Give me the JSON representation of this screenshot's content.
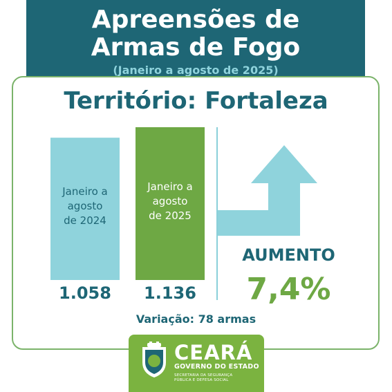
{
  "header": {
    "title_line1": "Apreensões de",
    "title_line2": "Armas de Fogo",
    "subtitle": "(Janeiro a agosto de 2025)"
  },
  "territory": "Território: Fortaleza",
  "change": {
    "label": "AUMENTO",
    "percent": "7,4%",
    "variation": "Variação: 78 armas"
  },
  "footer": {
    "brand": "CEARÁ",
    "brand_sub": "GOVERNO DO ESTADO",
    "secretariat_line1": "SECRETARIA DA SEGURANÇA",
    "secretariat_line2": "PÚBLICA E DEFESA SOCIAL"
  },
  "colors": {
    "teal_dark": "#1e6675",
    "teal_light": "#8fd3dc",
    "green": "#6ea844",
    "panel_border": "#7bb36a"
  },
  "icons": [
    "arrow-up-right-icon",
    "ceara-crest-icon"
  ],
  "chart_data": {
    "type": "bar",
    "categories": [
      [
        "Janeiro a",
        "agosto",
        "de 2024"
      ],
      [
        "Janeiro a",
        "agosto",
        "de 2025"
      ]
    ],
    "values": [
      1058,
      1136
    ],
    "value_labels": [
      "1.058",
      "1.136"
    ],
    "bar_colors": [
      "#8fd3dc",
      "#6ea844"
    ],
    "ylim": [
      0,
      1136
    ]
  }
}
